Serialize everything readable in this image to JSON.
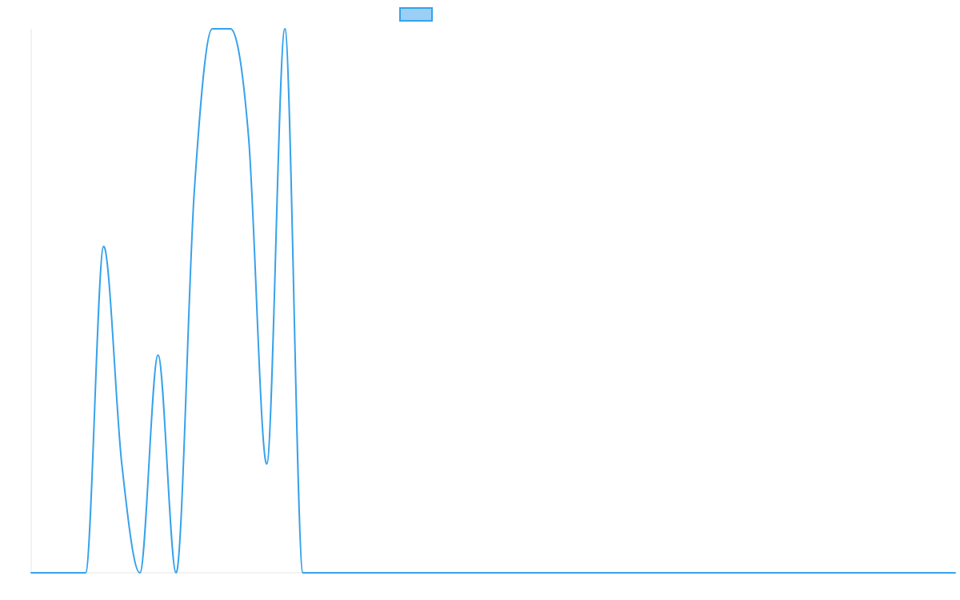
{
  "chart_data": {
    "type": "line",
    "title": "",
    "xlabel": "",
    "ylabel": "",
    "ylim": [
      0,
      1
    ],
    "grid": false,
    "legend": {
      "placement": "top-center",
      "entries": [
        {
          "name": ""
        }
      ]
    },
    "series": [
      {
        "name": "",
        "color": "#36A2EB",
        "fill": "#9AD0F5",
        "values": [
          0,
          0,
          0,
          0,
          0.6,
          0.2,
          0,
          0.4,
          0,
          0.7,
          1,
          1,
          0.8,
          0.2,
          1,
          0,
          0,
          0,
          0,
          0,
          0,
          0,
          0,
          0,
          0,
          0,
          0,
          0,
          0,
          0,
          0,
          0,
          0,
          0,
          0,
          0,
          0,
          0,
          0,
          0,
          0,
          0,
          0,
          0,
          0,
          0,
          0,
          0,
          0,
          0,
          0,
          0
        ]
      }
    ]
  }
}
